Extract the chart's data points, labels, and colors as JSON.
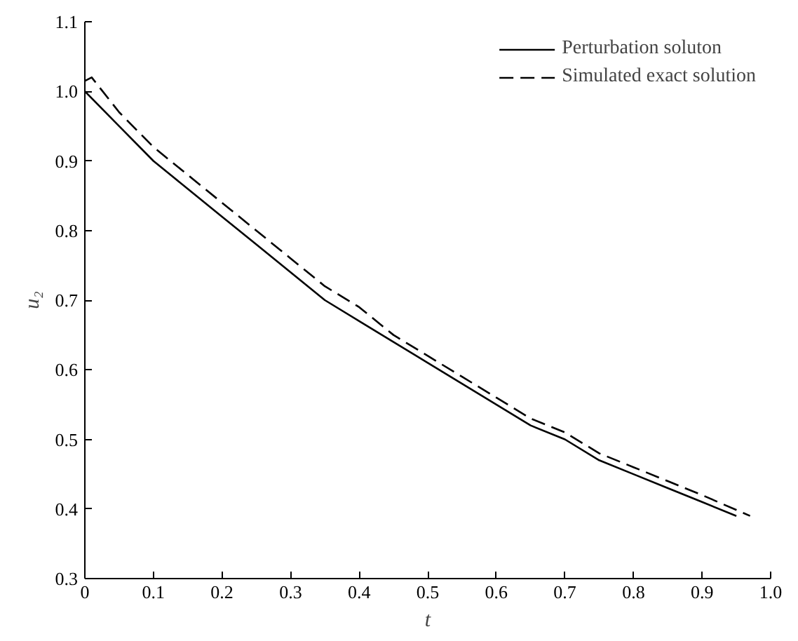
{
  "chart_data": {
    "type": "line",
    "xlabel": "t",
    "ylabel": "u₂",
    "xlim": [
      0,
      1.0
    ],
    "ylim": [
      0.3,
      1.1
    ],
    "xticks": [
      {
        "value": 0,
        "label": "0"
      },
      0.1,
      0.2,
      0.3,
      0.4,
      0.5,
      0.6,
      0.7,
      0.8,
      0.9,
      {
        "value": 1.0,
        "label": "1.0"
      }
    ],
    "yticks": [
      0.3,
      0.4,
      0.5,
      0.6,
      0.7,
      0.8,
      0.9,
      {
        "value": 1.0,
        "label": "1.0"
      },
      1.1
    ],
    "grid": false,
    "legend": "top right",
    "marker": "none",
    "series": [
      {
        "name": "Perturbation soluton",
        "color": "#000000",
        "line_style": "solid",
        "x": [
          0,
          0.05,
          0.1,
          0.15,
          0.2,
          0.25,
          0.3,
          0.35,
          0.4,
          0.45,
          0.5,
          0.55,
          0.6,
          0.65,
          0.7,
          0.75,
          0.8,
          0.85,
          0.9,
          0.95
        ],
        "values": [
          1.0,
          0.95,
          0.9,
          0.86,
          0.82,
          0.78,
          0.74,
          0.7,
          0.67,
          0.64,
          0.61,
          0.58,
          0.55,
          0.52,
          0.5,
          0.47,
          0.45,
          0.43,
          0.41,
          0.39
        ]
      },
      {
        "name": "Simulated exact solution",
        "color": "#000000",
        "line_style": "dashed",
        "x": [
          0,
          0.01,
          0.05,
          0.1,
          0.15,
          0.2,
          0.25,
          0.3,
          0.35,
          0.4,
          0.45,
          0.5,
          0.55,
          0.6,
          0.65,
          0.7,
          0.75,
          0.8,
          0.85,
          0.9,
          0.97
        ],
        "values": [
          1.015,
          1.02,
          0.97,
          0.92,
          0.88,
          0.84,
          0.8,
          0.76,
          0.72,
          0.69,
          0.65,
          0.62,
          0.59,
          0.56,
          0.53,
          0.51,
          0.48,
          0.46,
          0.44,
          0.42,
          0.39
        ]
      }
    ]
  }
}
